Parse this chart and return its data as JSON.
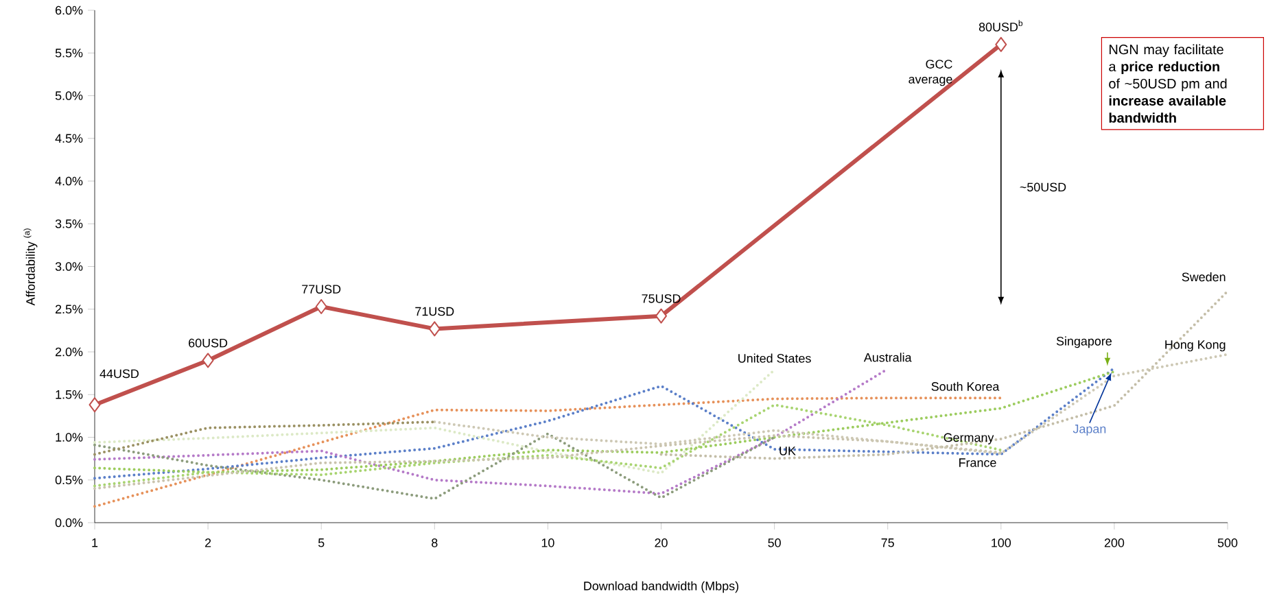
{
  "chart_data": {
    "type": "line",
    "xlabel": "Download bandwidth (Mbps)",
    "ylabel": "Affordability $^{(a)}$",
    "categories": [
      "1",
      "2",
      "5",
      "8",
      "10",
      "20",
      "50",
      "75",
      "100",
      "200",
      "500"
    ],
    "ylim": [
      0,
      6
    ],
    "yticks": [
      {
        "value": 0,
        "label": "0.0%"
      },
      {
        "value": 0.5,
        "label": "0.5%"
      },
      {
        "value": 1,
        "label": "1.0%"
      },
      {
        "value": 1.5,
        "label": "1.5%"
      },
      {
        "value": 2,
        "label": "2.0%"
      },
      {
        "value": 2.5,
        "label": "2.5%"
      },
      {
        "value": 3,
        "label": "3.0%"
      },
      {
        "value": 3.5,
        "label": "3.5%"
      },
      {
        "value": 4,
        "label": "4.0%"
      },
      {
        "value": 4.5,
        "label": "4.5%"
      },
      {
        "value": 5,
        "label": "5.0%"
      },
      {
        "value": 5.5,
        "label": "5.5%"
      },
      {
        "value": 6,
        "label": "6.0%"
      }
    ],
    "line_style": "dotted",
    "series": [
      {
        "name": "GCC average",
        "color": "#c0504d",
        "line_style": "solid",
        "marker": "diamond",
        "values": [
          1.38,
          1.9,
          2.53,
          2.27,
          null,
          2.42,
          null,
          null,
          5.6,
          null,
          null
        ]
      },
      {
        "name": "South Korea",
        "color": "#e6915a",
        "values": [
          0.19,
          0.56,
          0.94,
          1.32,
          1.31,
          1.38,
          1.45,
          1.46,
          1.46,
          null,
          null
        ]
      },
      {
        "name": "Japan",
        "color": "#5b7fc8",
        "values": [
          0.52,
          0.63,
          0.76,
          0.87,
          1.19,
          1.6,
          0.86,
          0.83,
          0.8,
          1.81,
          null
        ]
      },
      {
        "name": "Australia",
        "color": "#b57ac8",
        "values": [
          0.74,
          0.79,
          0.84,
          0.5,
          0.43,
          0.34,
          1.0,
          1.8,
          null,
          null,
          null
        ]
      },
      {
        "name": "United States",
        "color": "#dce9c6",
        "values": [
          0.94,
          0.99,
          1.05,
          1.11,
          0.83,
          0.58,
          1.79,
          null,
          null,
          null,
          null
        ]
      },
      {
        "name": "Singapore",
        "color": "#9ccc5e",
        "values": [
          0.64,
          0.59,
          0.62,
          0.72,
          0.85,
          0.82,
          1.0,
          1.17,
          1.34,
          1.77,
          null
        ]
      },
      {
        "name": "UK",
        "color": "#8c9c7c",
        "values": [
          0.91,
          0.67,
          0.5,
          0.28,
          1.04,
          0.29,
          1.0,
          null,
          null,
          null,
          null
        ]
      },
      {
        "name": "Germany",
        "color": "#a8d470",
        "values": [
          0.43,
          0.59,
          0.56,
          0.7,
          0.79,
          0.64,
          1.38,
          1.14,
          0.85,
          null,
          null
        ]
      },
      {
        "name": "France",
        "color": "#c9c3ad",
        "values": [
          0.4,
          0.55,
          0.7,
          0.72,
          0.76,
          0.9,
          1.02,
          0.95,
          0.82,
          null,
          null
        ]
      },
      {
        "name": "Sweden",
        "color": "#c4bea8",
        "values": [
          null,
          null,
          null,
          null,
          null,
          0.8,
          0.75,
          0.8,
          0.98,
          1.37,
          2.71
        ]
      },
      {
        "name": "Hong Kong",
        "color": "#cdc8b4",
        "values": [
          null,
          null,
          null,
          1.18,
          1.0,
          0.92,
          1.08,
          0.95,
          0.81,
          1.72,
          1.97
        ]
      },
      {
        "color": "#9a9062",
        "values": [
          0.8,
          1.11,
          1.14,
          1.18,
          null,
          null,
          null,
          null,
          null,
          null,
          null
        ]
      }
    ],
    "annotations": [
      "~50USD",
      "NGN may facilitate a **price reduction** of ~50USD pm and **increase available bandwidth**",
      {
        "text": "44USD",
        "x": "1",
        "y": 1.38
      },
      {
        "text": "60USD",
        "x": "2",
        "y": 1.9
      },
      {
        "text": "77USD",
        "x": "5",
        "y": 2.53
      },
      {
        "text": "71USD",
        "x": "8",
        "y": 2.27
      },
      {
        "text": "75USD",
        "x": "20",
        "y": 2.42
      },
      {
        "text": "80USD$^{b}$",
        "x": "100",
        "y": 5.6
      }
    ]
  }
}
